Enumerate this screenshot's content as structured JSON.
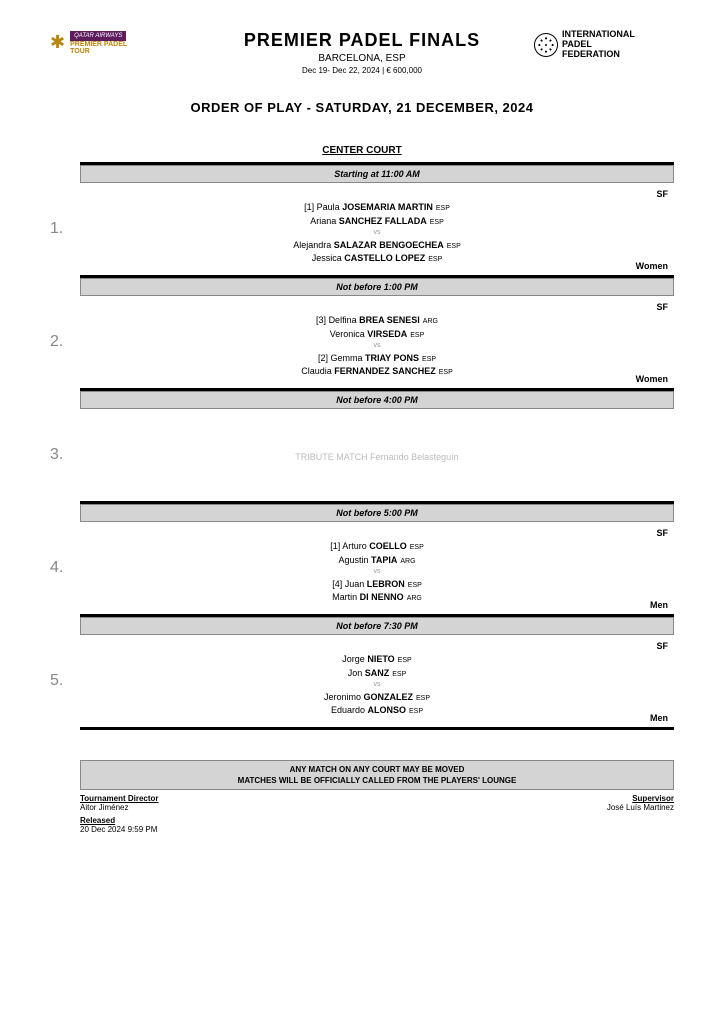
{
  "header": {
    "title": "PREMIER PADEL FINALS",
    "location": "BARCELONA, ESP",
    "dates_prize": "Dec 19- Dec 22, 2024   |   € 600,000",
    "qatar": "QATAR AIRWAYS",
    "pp1": "PREMIER PADEL",
    "pp2": "TOUR",
    "ipf1": "INTERNATIONAL",
    "ipf2": "PADEL",
    "ipf3": "FEDERATION"
  },
  "order_title": "ORDER OF PLAY - SATURDAY, 21 DECEMBER, 2024",
  "court": "CENTER COURT",
  "matches": [
    {
      "num": "1.",
      "time": "Starting at 11:00 AM",
      "round": "SF",
      "category": "Women",
      "t1p1_seed": "[1]",
      "t1p1_first": "Paula",
      "t1p1_last": "JOSEMARIA MARTIN",
      "t1p1_nat": "ESP",
      "t1p2_first": "Ariana",
      "t1p2_last": "SANCHEZ FALLADA",
      "t1p2_nat": "ESP",
      "t2p1_first": "Alejandra",
      "t2p1_last": "SALAZAR BENGOECHEA",
      "t2p1_nat": "ESP",
      "t2p2_first": "Jessica",
      "t2p2_last": "CASTELLO LOPEZ",
      "t2p2_nat": "ESP"
    },
    {
      "num": "2.",
      "time": "Not before 1:00 PM",
      "round": "SF",
      "category": "Women",
      "t1p1_seed": "[3]",
      "t1p1_first": "Delfina",
      "t1p1_last": "BREA SENESI",
      "t1p1_nat": "ARG",
      "t1p2_first": "Veronica",
      "t1p2_last": "VIRSEDA",
      "t1p2_nat": "ESP",
      "t2p1_seed": "[2]",
      "t2p1_first": "Gemma",
      "t2p1_last": "TRIAY PONS",
      "t2p1_nat": "ESP",
      "t2p2_first": "Claudia",
      "t2p2_last": "FERNANDEZ SANCHEZ",
      "t2p2_nat": "ESP"
    },
    {
      "num": "3.",
      "time": "Not before 4:00 PM",
      "tribute": "TRIBUTE MATCH Fernando Belasteguín"
    },
    {
      "num": "4.",
      "time": "Not before 5:00 PM",
      "round": "SF",
      "category": "Men",
      "t1p1_seed": "[1]",
      "t1p1_first": "Arturo",
      "t1p1_last": "COELLO",
      "t1p1_nat": "ESP",
      "t1p2_first": "Agustin",
      "t1p2_last": "TAPIA",
      "t1p2_nat": "ARG",
      "t2p1_seed": "[4]",
      "t2p1_first": "Juan",
      "t2p1_last": "LEBRON",
      "t2p1_nat": "ESP",
      "t2p2_first": "Martin",
      "t2p2_last": "DI NENNO",
      "t2p2_nat": "ARG"
    },
    {
      "num": "5.",
      "time": "Not before 7:30 PM",
      "round": "SF",
      "category": "Men",
      "t1p1_first": "Jorge",
      "t1p1_last": "NIETO",
      "t1p1_nat": "ESP",
      "t1p2_first": "Jon",
      "t1p2_last": "SANZ",
      "t1p2_nat": "ESP",
      "t2p1_first": "Jeronimo",
      "t2p1_last": "GONZALEZ",
      "t2p1_nat": "ESP",
      "t2p2_first": "Eduardo",
      "t2p2_last": "ALONSO",
      "t2p2_nat": "ESP"
    }
  ],
  "notice": {
    "line1": "ANY MATCH ON ANY COURT MAY BE MOVED",
    "line2": "MATCHES WILL BE OFFICIALLY CALLED FROM THE PLAYERS' LOUNGE"
  },
  "footer": {
    "td_label": "Tournament Director",
    "td_name": "Aitor Jiménez",
    "released_label": "Released",
    "released_value": "20 Dec 2024  9:59 PM",
    "sup_label": "Supervisor",
    "sup_name": "José Luís Martinez"
  },
  "vs": "vs"
}
